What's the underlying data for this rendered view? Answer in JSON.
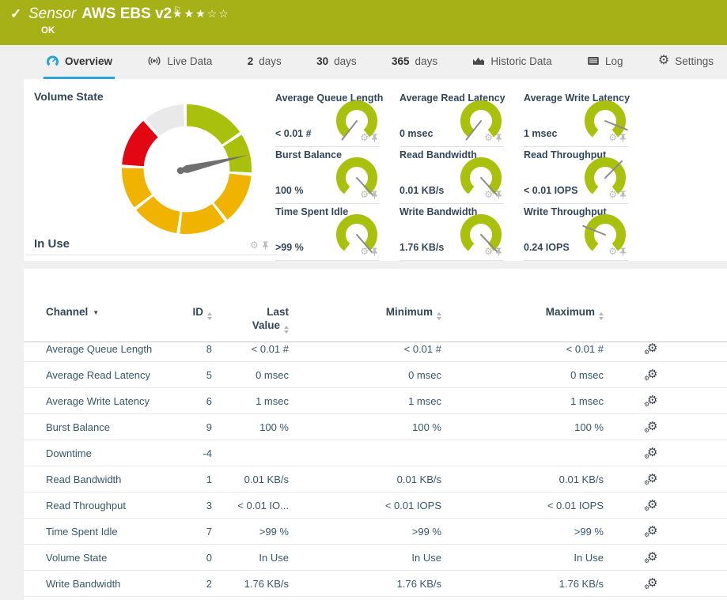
{
  "colors": {
    "header_green": "#a6b117",
    "accent_blue": "#2da3dc",
    "gauge_green": "#a9c10d",
    "gauge_amber": "#f0b400",
    "gauge_red": "#e30613",
    "gauge_gray": "#e9e9e9",
    "navy": "#32465a"
  },
  "icons": {
    "check": "✓",
    "flag": "⚐",
    "star_filled": "★",
    "star_empty": "☆",
    "gear": "⚙",
    "caret_down": "▼"
  },
  "header": {
    "kind": "Sensor",
    "name": "AWS EBS v2",
    "status": "OK",
    "stars_filled": 3,
    "stars_total": 5
  },
  "tabs": {
    "overview": "Overview",
    "live_data": "Live Data",
    "days2_num": "2",
    "days2_unit": "days",
    "days30_num": "30",
    "days30_unit": "days",
    "days365_num": "365",
    "days365_unit": "days",
    "historic": "Historic Data",
    "log": "Log",
    "settings": "Settings"
  },
  "primary": {
    "title": "Volume State",
    "value": "In Use"
  },
  "big_gauge": {
    "needle_angle": 77,
    "segments": [
      {
        "color": "green",
        "start": 0,
        "end": 55
      },
      {
        "color": "green",
        "start": 58,
        "end": 93
      },
      {
        "color": "amber",
        "start": 96,
        "end": 141
      },
      {
        "color": "amber",
        "start": 144,
        "end": 186
      },
      {
        "color": "amber",
        "start": 189,
        "end": 231
      },
      {
        "color": "amber",
        "start": 234,
        "end": 271
      },
      {
        "color": "red",
        "start": 274,
        "end": 318
      },
      {
        "color": "gray",
        "start": 321,
        "end": 357
      }
    ]
  },
  "gauge_cells": [
    {
      "label": "Average Queue Length",
      "value": "< 0.01 #",
      "needle_angle": 218
    },
    {
      "label": "Average Read Latency",
      "value": "0 msec",
      "needle_angle": 218
    },
    {
      "label": "Average Write Latency",
      "value": "1 msec",
      "needle_angle": 112
    },
    {
      "label": "Burst Balance",
      "value": "100 %",
      "needle_angle": 137
    },
    {
      "label": "Read Bandwidth",
      "value": "0.01 KB/s",
      "needle_angle": 137
    },
    {
      "label": "Read Throughput",
      "value": "< 0.01 IOPS",
      "needle_angle": 45
    },
    {
      "label": "Time Spent Idle",
      "value": ">99 %",
      "needle_angle": 139
    },
    {
      "label": "Write Bandwidth",
      "value": "1.76 KB/s",
      "needle_angle": 136
    },
    {
      "label": "Write Throughput",
      "value": "0.24 IOPS",
      "needle_angle": 292
    }
  ],
  "table": {
    "headers": {
      "channel": "Channel",
      "id": "ID",
      "last_line1": "Last",
      "last_line2": "Value",
      "minimum": "Minimum",
      "maximum": "Maximum"
    },
    "rows": [
      {
        "name": "Average Queue Length",
        "id": "8",
        "last": "< 0.01 #",
        "min": "< 0.01 #",
        "max": "< 0.01 #"
      },
      {
        "name": "Average Read Latency",
        "id": "5",
        "last": "0 msec",
        "min": "0 msec",
        "max": "0 msec"
      },
      {
        "name": "Average Write Latency",
        "id": "6",
        "last": "1 msec",
        "min": "1 msec",
        "max": "1 msec"
      },
      {
        "name": "Burst Balance",
        "id": "9",
        "last": "100 %",
        "min": "100 %",
        "max": "100 %"
      },
      {
        "name": "Downtime",
        "id": "-4",
        "last": "",
        "min": "",
        "max": ""
      },
      {
        "name": "Read Bandwidth",
        "id": "1",
        "last": "0.01 KB/s",
        "min": "0.01 KB/s",
        "max": "0.01 KB/s"
      },
      {
        "name": "Read Throughput",
        "id": "3",
        "last": "< 0.01 IO...",
        "min": "< 0.01 IOPS",
        "max": "< 0.01 IOPS"
      },
      {
        "name": "Time Spent Idle",
        "id": "7",
        "last": ">99 %",
        "min": ">99 %",
        "max": ">99 %"
      },
      {
        "name": "Volume State",
        "id": "0",
        "last": "In Use",
        "min": "In Use",
        "max": "In Use"
      },
      {
        "name": "Write Bandwidth",
        "id": "2",
        "last": "1.76 KB/s",
        "min": "1.76 KB/s",
        "max": "1.76 KB/s"
      }
    ]
  }
}
